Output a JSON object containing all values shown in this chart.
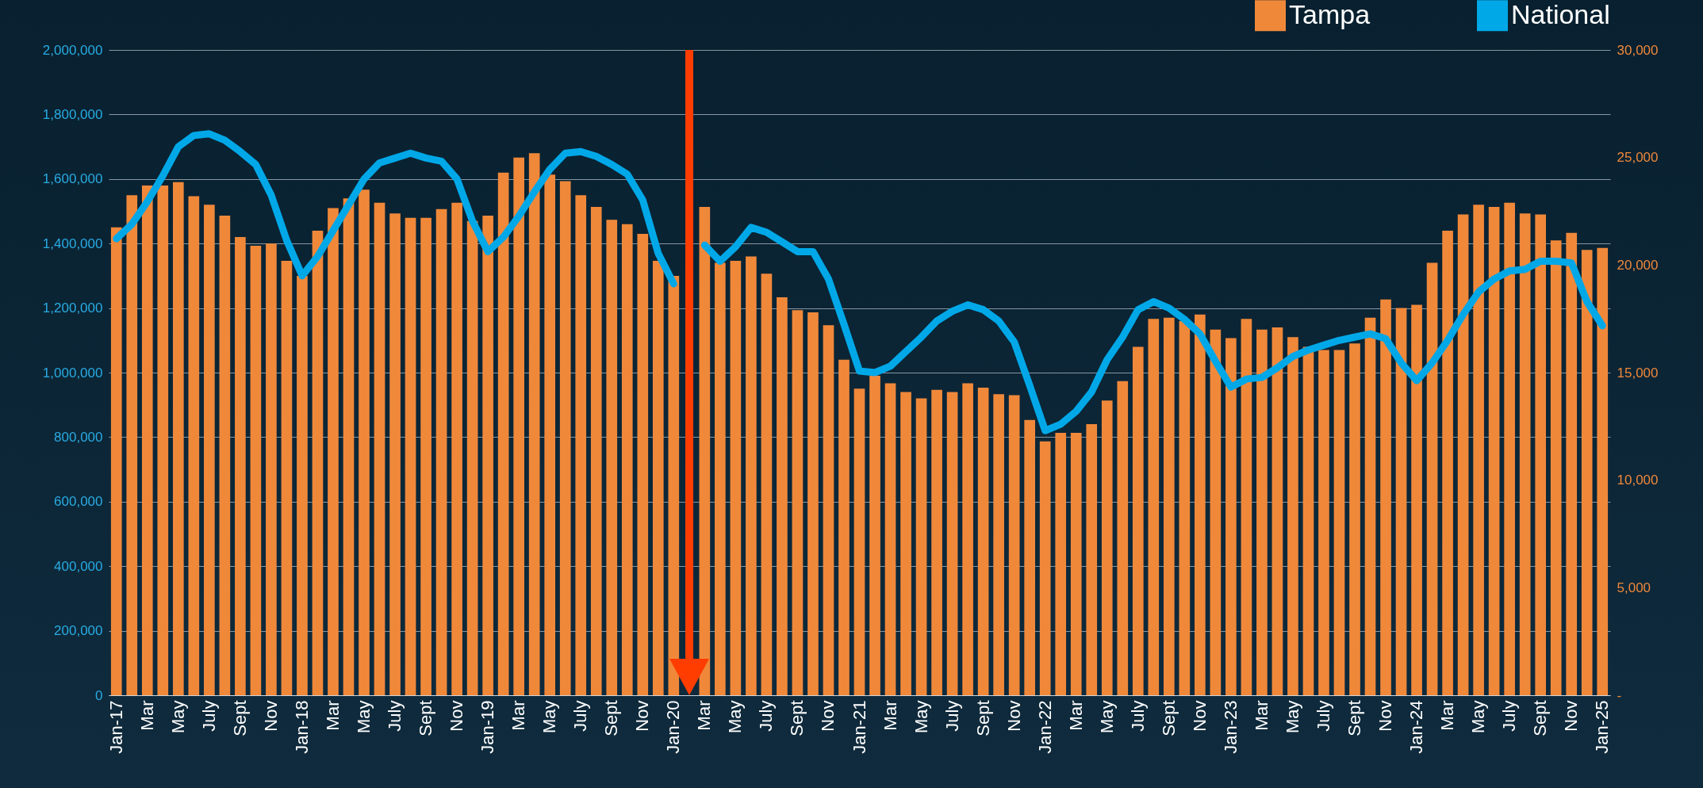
{
  "chart_data": {
    "type": "bar",
    "categories": [
      "Jan-17",
      null,
      "Mar",
      null,
      "May",
      null,
      "July",
      null,
      "Sept",
      null,
      "Nov",
      null,
      "Jan-18",
      null,
      "Mar",
      null,
      "May",
      null,
      "July",
      null,
      "Sept",
      null,
      "Nov",
      null,
      "Jan-19",
      null,
      "Mar",
      null,
      "May",
      null,
      "July",
      null,
      "Sept",
      null,
      "Nov",
      null,
      "Jan-20",
      null,
      "Mar",
      null,
      "May",
      null,
      "July",
      null,
      "Sept",
      null,
      "Nov",
      null,
      "Jan-21",
      null,
      "Mar",
      null,
      "May",
      null,
      "July",
      null,
      "Sept",
      null,
      "Nov",
      null,
      "Jan-22",
      null,
      "Mar",
      null,
      "May",
      null,
      "July",
      null,
      "Sept",
      null,
      "Nov",
      null,
      "Jan-23",
      null,
      "Mar",
      null,
      "May",
      null,
      "July",
      null,
      "Sept",
      null,
      "Nov",
      null,
      "Jan-24",
      null,
      "Mar",
      null,
      "May",
      null,
      "July",
      null,
      "Sept",
      null,
      "Nov",
      null,
      "Jan-25"
    ],
    "series": [
      {
        "name": "Tampa",
        "axis": "y2",
        "color": "#f0883a",
        "values": [
          21750,
          23250,
          23700,
          23700,
          23850,
          23200,
          22800,
          22300,
          21300,
          20900,
          21000,
          20200,
          19500,
          21600,
          22650,
          23100,
          23500,
          22900,
          22400,
          22200,
          22200,
          22600,
          22900,
          22050,
          22300,
          24300,
          25000,
          25200,
          24200,
          23900,
          23250,
          22700,
          22100,
          21900,
          21450,
          20200,
          19500,
          null,
          22700,
          20100,
          20200,
          20400,
          19600,
          18500,
          17900,
          17800,
          17200,
          15600,
          14250,
          14850,
          14500,
          14100,
          13800,
          14200,
          14100,
          14500,
          14300,
          14000,
          13950,
          12800,
          11800,
          12200,
          12200,
          12600,
          13700,
          14600,
          16200,
          17500,
          17550,
          17400,
          17700,
          17000,
          16600,
          17500,
          17000,
          17100,
          16650,
          16200,
          16050,
          16050,
          16350,
          17550,
          18400,
          18000,
          18150,
          20100,
          21600,
          22350,
          22800,
          22700,
          22900,
          22400,
          22350,
          21150,
          21500,
          20700,
          20800
        ]
      },
      {
        "name": "National",
        "type": "line",
        "axis": "y",
        "color": "#00a8e8",
        "values": [
          1415000,
          1460000,
          1530000,
          1610000,
          1700000,
          1735000,
          1740000,
          1720000,
          1685000,
          1645000,
          1550000,
          1410000,
          1300000,
          1360000,
          1440000,
          1520000,
          1600000,
          1650000,
          1665000,
          1680000,
          1665000,
          1655000,
          1600000,
          1470000,
          1375000,
          1420000,
          1485000,
          1560000,
          1630000,
          1680000,
          1685000,
          1670000,
          1645000,
          1615000,
          1535000,
          1370000,
          1275000,
          null,
          1395000,
          1345000,
          1390000,
          1450000,
          1435000,
          1405000,
          1375000,
          1375000,
          1290000,
          1150000,
          1005000,
          1000000,
          1020000,
          1065000,
          1110000,
          1160000,
          1190000,
          1210000,
          1195000,
          1160000,
          1095000,
          960000,
          820000,
          840000,
          880000,
          940000,
          1040000,
          1110000,
          1195000,
          1220000,
          1200000,
          1165000,
          1120000,
          1035000,
          955000,
          980000,
          985000,
          1015000,
          1050000,
          1070000,
          1085000,
          1100000,
          1110000,
          1120000,
          1105000,
          1030000,
          975000,
          1030000,
          1100000,
          1180000,
          1250000,
          1290000,
          1315000,
          1320000,
          1345000,
          1345000,
          1340000,
          1220000,
          1145000
        ]
      }
    ],
    "ylim": [
      0,
      2000000
    ],
    "yticks": [
      0,
      {
        "value": 200000,
        "label": "200,000"
      },
      {
        "value": 400000,
        "label": "400,000"
      },
      {
        "value": 600000,
        "label": "600,000"
      },
      {
        "value": 800000,
        "label": "800,000"
      },
      {
        "value": 1000000,
        "label": "1,000,000"
      },
      {
        "value": 1200000,
        "label": "1,200,000"
      },
      {
        "value": 1400000,
        "label": "1,400,000"
      },
      {
        "value": 1600000,
        "label": "1,600,000"
      },
      {
        "value": 1800000,
        "label": "1,800,000"
      },
      {
        "value": 2000000,
        "label": "2,000,000"
      }
    ],
    "y2lim": [
      0,
      30000
    ],
    "y2ticks": [
      {
        "value": 0,
        "label": "-"
      },
      {
        "value": 5000,
        "label": "5,000"
      },
      {
        "value": 10000,
        "label": "10,000"
      },
      {
        "value": 15000,
        "label": "15,000"
      },
      {
        "value": 20000,
        "label": "20,000"
      },
      {
        "value": 25000,
        "label": "25,000"
      },
      {
        "value": 30000,
        "label": "30,000"
      }
    ],
    "grid": "y",
    "legend": "top right",
    "line_style": "solid",
    "marker": "none"
  }
}
